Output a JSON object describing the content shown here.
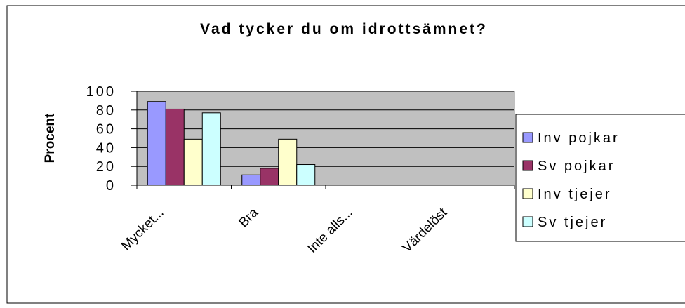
{
  "chart_data": {
    "type": "bar",
    "title": "Vad tycker du om idrottsämnet?",
    "y_label": "Procent",
    "categories": [
      "Mycket...",
      "Bra",
      "Inte alls...",
      "Värdelöst"
    ],
    "series": [
      {
        "name": "Inv pojkar",
        "color": "#9999ff",
        "values": [
          89,
          11,
          0,
          0
        ]
      },
      {
        "name": "Sv pojkar",
        "color": "#993366",
        "values": [
          81,
          18,
          0,
          0
        ]
      },
      {
        "name": "Inv tjejer",
        "color": "#ffffcc",
        "values": [
          49,
          49,
          0,
          0
        ]
      },
      {
        "name": "Sv tjejer",
        "color": "#ccffff",
        "values": [
          77,
          22,
          0,
          0
        ]
      }
    ],
    "ylim": [
      0,
      100
    ],
    "yticks": [
      0,
      20,
      40,
      60,
      80,
      100
    ],
    "grid": true,
    "legend": "right"
  }
}
